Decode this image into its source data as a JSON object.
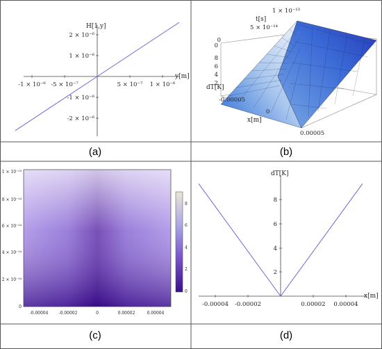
{
  "captions": [
    "(a)",
    "(b)",
    "(c)",
    "(d)"
  ],
  "chart_data": [
    {
      "panel": "a",
      "type": "line",
      "xlabel": "y[m]",
      "ylabel": "H[1,y]",
      "xlim": [
        -1.2e-06,
        1.2e-06
      ],
      "ylim": [
        -2.1e-06,
        2.1e-06
      ],
      "x_ticks": [
        "-1 × 10⁻⁶",
        "-5 × 10⁻⁷",
        "5 × 10⁻⁷",
        "1 × 10⁻⁶"
      ],
      "y_ticks": [
        "2 × 10⁻⁶",
        "1 × 10⁻⁶",
        "-1 × 10⁻⁶",
        "-2 × 10⁻⁶"
      ],
      "series": [
        {
          "x": [
            -1.2e-06,
            1.2e-06
          ],
          "y": [
            -1.9e-06,
            1.9e-06
          ]
        }
      ],
      "color": "#6a6ad8"
    },
    {
      "panel": "b",
      "type": "surface3d",
      "xlabel": "x[m]",
      "ylabel": "t[s]",
      "zlabel": "dT[K]",
      "x_ticks": [
        "-0.00005",
        "0",
        "0.00005"
      ],
      "t_ticks": [
        "0",
        "5 × 10⁻¹⁴",
        "1 × 10⁻¹³"
      ],
      "z_ticks": [
        "0",
        "2",
        "4",
        "6",
        "8"
      ],
      "xlim": [
        -5e-05,
        5e-05
      ],
      "tlim": [
        0,
        1e-13
      ],
      "zlim": [
        0,
        10
      ]
    },
    {
      "panel": "c",
      "type": "heatmap",
      "x_ticks": [
        "-0.00004",
        "-0.00002",
        "0",
        "0.00002",
        "0.00004"
      ],
      "y_ticks": [
        "1 × 10⁻¹³",
        "8 × 10⁻¹⁴",
        "6 × 10⁻¹⁴",
        "4 × 10⁻¹⁴",
        "2 × 10⁻¹⁴",
        "0"
      ],
      "colorbar_ticks": [
        "8",
        "6",
        "4",
        "2",
        "0"
      ],
      "xlim": [
        -5e-05,
        5e-05
      ],
      "ylim": [
        0,
        1.05e-13
      ],
      "zlim": [
        0,
        9
      ]
    },
    {
      "panel": "d",
      "type": "line",
      "xlabel": "x[m]",
      "ylabel": "dT[K]",
      "xlim": [
        -5e-05,
        5e-05
      ],
      "ylim": [
        0,
        10
      ],
      "x_ticks": [
        "-0.00004",
        "-0.00002",
        "0.00002",
        "0.00004"
      ],
      "y_ticks": [
        "8",
        "6",
        "4",
        "2"
      ],
      "series": [
        {
          "x": [
            -5e-05,
            0,
            5e-05
          ],
          "y": [
            9.3,
            0,
            9.3
          ]
        }
      ],
      "color": "#6a6ad8"
    }
  ]
}
